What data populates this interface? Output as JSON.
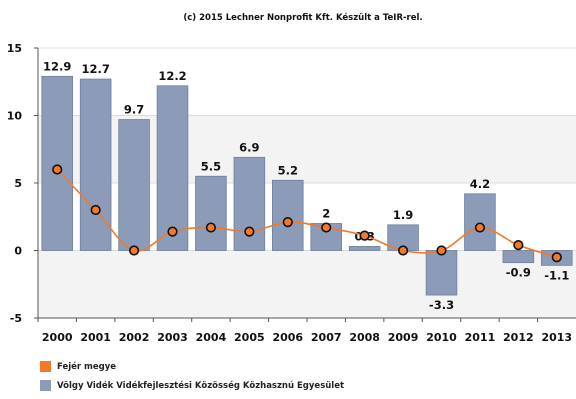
{
  "chart_data": {
    "type": "bar",
    "title": "(c) 2015 Lechner Nonprofit Kft. Készült a TeIR-rel.",
    "categories": [
      "2000",
      "2001",
      "2002",
      "2003",
      "2004",
      "2005",
      "2006",
      "2007",
      "2008",
      "2009",
      "2010",
      "2011",
      "2012",
      "2013"
    ],
    "series": [
      {
        "name": "Völgy Vidék Vidékfejlesztési Közösség Közhasznú Egyesület",
        "type": "bar",
        "color": "#8c9bb8",
        "values": [
          12.9,
          12.7,
          9.7,
          12.2,
          5.5,
          6.9,
          5.2,
          2,
          0.3,
          1.9,
          -3.3,
          4.2,
          -0.9,
          -1.1
        ],
        "labels": [
          "12.9",
          "12.7",
          "9.7",
          "12.2",
          "5.5",
          "6.9",
          "5.2",
          "2",
          "0.3",
          "1.9",
          "-3.3",
          "4.2",
          "-0.9",
          "-1.1"
        ]
      },
      {
        "name": "Fejér megye",
        "type": "line",
        "color": "#f07a2a",
        "values": [
          6.0,
          3.0,
          0.0,
          1.4,
          1.7,
          1.4,
          2.1,
          1.7,
          1.1,
          0.0,
          0.0,
          1.7,
          0.4,
          -0.5
        ]
      }
    ],
    "ylim": [
      -5,
      15
    ],
    "yticks": [
      -5,
      0,
      5,
      10,
      15
    ],
    "grid": true,
    "legend_position": "bottom-left"
  }
}
